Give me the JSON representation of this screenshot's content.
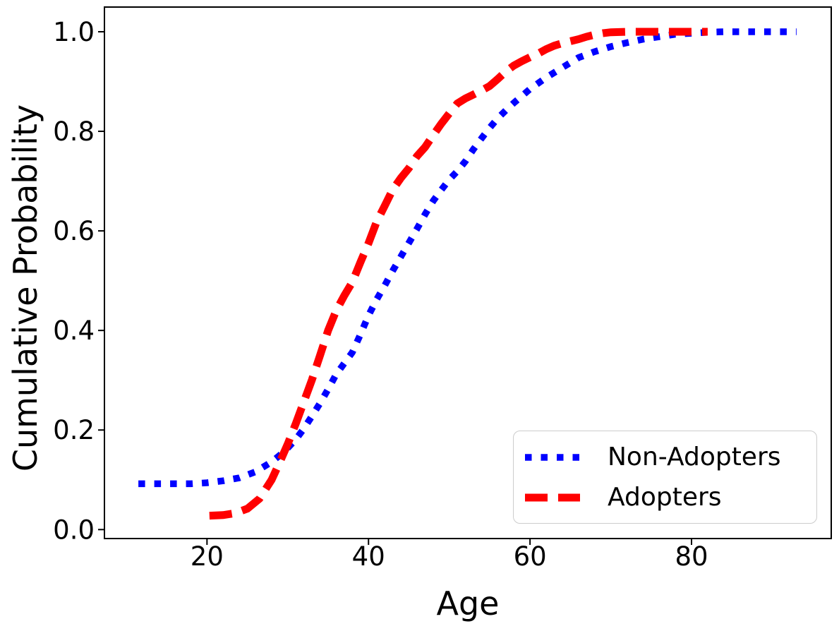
{
  "chart_data": {
    "type": "line",
    "title": "",
    "xlabel": "Age",
    "ylabel": "Cumulative Probability",
    "grid": false,
    "legend_position": "lower right",
    "xlim": [
      7.3,
      97.3
    ],
    "ylim": [
      -0.018,
      1.0496
    ],
    "xtick_values": [
      20,
      40,
      60,
      80
    ],
    "xtick_labels": [
      "20",
      "40",
      "60",
      "80"
    ],
    "ytick_values": [
      0.0,
      0.2,
      0.4,
      0.6,
      0.8,
      1.0
    ],
    "ytick_labels": [
      "0.0",
      "0.2",
      "0.4",
      "0.6",
      "0.8",
      "1.0"
    ],
    "series": [
      {
        "name": "Non-Adopters",
        "color": "#0000ff",
        "line_style": "dotted",
        "points": [
          [
            11.5,
            0.092
          ],
          [
            14,
            0.092
          ],
          [
            16,
            0.092
          ],
          [
            18,
            0.092
          ],
          [
            20,
            0.094
          ],
          [
            22,
            0.098
          ],
          [
            24,
            0.104
          ],
          [
            26,
            0.116
          ],
          [
            28,
            0.136
          ],
          [
            29,
            0.149
          ],
          [
            30,
            0.164
          ],
          [
            31,
            0.181
          ],
          [
            32,
            0.203
          ],
          [
            33,
            0.228
          ],
          [
            34,
            0.254
          ],
          [
            35,
            0.282
          ],
          [
            36,
            0.312
          ],
          [
            37,
            0.334
          ],
          [
            38,
            0.356
          ],
          [
            39,
            0.392
          ],
          [
            40,
            0.43
          ],
          [
            41,
            0.462
          ],
          [
            42,
            0.49
          ],
          [
            43,
            0.52
          ],
          [
            44,
            0.548
          ],
          [
            45,
            0.576
          ],
          [
            46,
            0.604
          ],
          [
            47,
            0.633
          ],
          [
            48,
            0.66
          ],
          [
            49,
            0.682
          ],
          [
            50,
            0.703
          ],
          [
            51,
            0.72
          ],
          [
            52,
            0.74
          ],
          [
            53,
            0.764
          ],
          [
            54,
            0.786
          ],
          [
            55,
            0.807
          ],
          [
            56,
            0.826
          ],
          [
            57,
            0.842
          ],
          [
            58,
            0.857
          ],
          [
            59,
            0.871
          ],
          [
            60,
            0.885
          ],
          [
            62,
            0.908
          ],
          [
            64,
            0.928
          ],
          [
            66,
            0.948
          ],
          [
            68,
            0.96
          ],
          [
            70,
            0.97
          ],
          [
            72,
            0.978
          ],
          [
            74,
            0.985
          ],
          [
            76,
            0.99
          ],
          [
            78,
            0.995
          ],
          [
            80,
            0.997
          ],
          [
            82,
            0.999
          ],
          [
            84,
            1.0
          ],
          [
            88,
            1.0
          ],
          [
            93,
            1.0
          ]
        ]
      },
      {
        "name": "Adopters",
        "color": "#ff0000",
        "line_style": "dashed",
        "points": [
          [
            20.3,
            0.028
          ],
          [
            22,
            0.029
          ],
          [
            23.5,
            0.033
          ],
          [
            25,
            0.042
          ],
          [
            26.5,
            0.062
          ],
          [
            28,
            0.1
          ],
          [
            29,
            0.135
          ],
          [
            30,
            0.172
          ],
          [
            31,
            0.213
          ],
          [
            32,
            0.257
          ],
          [
            33,
            0.301
          ],
          [
            34,
            0.35
          ],
          [
            35,
            0.4
          ],
          [
            36,
            0.44
          ],
          [
            37,
            0.47
          ],
          [
            38,
            0.497
          ],
          [
            39,
            0.537
          ],
          [
            40,
            0.575
          ],
          [
            41,
            0.618
          ],
          [
            42,
            0.65
          ],
          [
            43,
            0.683
          ],
          [
            44,
            0.706
          ],
          [
            45,
            0.726
          ],
          [
            46,
            0.75
          ],
          [
            47,
            0.768
          ],
          [
            48,
            0.792
          ],
          [
            49,
            0.815
          ],
          [
            50,
            0.836
          ],
          [
            51,
            0.856
          ],
          [
            52,
            0.866
          ],
          [
            53,
            0.874
          ],
          [
            54,
            0.882
          ],
          [
            55,
            0.891
          ],
          [
            56,
            0.905
          ],
          [
            57,
            0.92
          ],
          [
            58,
            0.932
          ],
          [
            59,
            0.941
          ],
          [
            60,
            0.949
          ],
          [
            61,
            0.956
          ],
          [
            62,
            0.965
          ],
          [
            63,
            0.972
          ],
          [
            64,
            0.977
          ],
          [
            65,
            0.981
          ],
          [
            66,
            0.985
          ],
          [
            67,
            0.99
          ],
          [
            68,
            0.994
          ],
          [
            69,
            0.997
          ],
          [
            70,
            0.999
          ],
          [
            72,
            1.0
          ],
          [
            76,
            1.0
          ],
          [
            82,
            1.0
          ]
        ]
      }
    ]
  }
}
